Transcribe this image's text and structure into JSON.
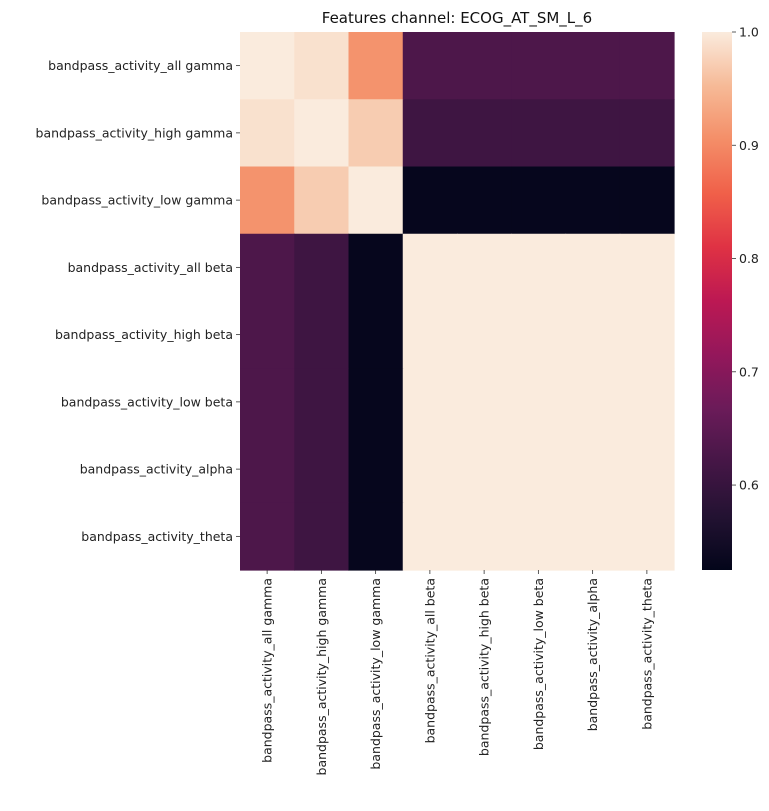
{
  "chart_data": {
    "type": "heatmap",
    "title": "Features channel: ECOG_AT_SM_L_6",
    "rows": [
      "bandpass_activity_all gamma",
      "bandpass_activity_high gamma",
      "bandpass_activity_low gamma",
      "bandpass_activity_all beta",
      "bandpass_activity_high beta",
      "bandpass_activity_low beta",
      "bandpass_activity_alpha",
      "bandpass_activity_theta"
    ],
    "columns": [
      "bandpass_activity_all gamma",
      "bandpass_activity_high gamma",
      "bandpass_activity_low gamma",
      "bandpass_activity_all beta",
      "bandpass_activity_high beta",
      "bandpass_activity_low beta",
      "bandpass_activity_alpha",
      "bandpass_activity_theta"
    ],
    "values": [
      [
        1.0,
        0.99,
        0.91,
        0.63,
        0.63,
        0.63,
        0.63,
        0.63
      ],
      [
        0.99,
        1.0,
        0.97,
        0.61,
        0.61,
        0.61,
        0.61,
        0.61
      ],
      [
        0.91,
        0.97,
        1.0,
        0.53,
        0.53,
        0.53,
        0.53,
        0.53
      ],
      [
        0.63,
        0.61,
        0.53,
        1.0,
        1.0,
        1.0,
        1.0,
        1.0
      ],
      [
        0.63,
        0.61,
        0.53,
        1.0,
        1.0,
        1.0,
        1.0,
        1.0
      ],
      [
        0.63,
        0.61,
        0.53,
        1.0,
        1.0,
        1.0,
        1.0,
        1.0
      ],
      [
        0.63,
        0.61,
        0.53,
        1.0,
        1.0,
        1.0,
        1.0,
        1.0
      ],
      [
        0.63,
        0.61,
        0.53,
        1.0,
        1.0,
        1.0,
        1.0,
        1.0
      ]
    ],
    "colorbar": {
      "colormap": "rocket",
      "vmin": 0.525,
      "vmax": 1.0,
      "ticks": [
        0.6,
        0.7,
        0.8,
        0.9,
        1.0
      ],
      "tick_labels": [
        "0.6",
        "0.7",
        "0.8",
        "0.9",
        "1.0"
      ]
    },
    "grid": false,
    "legend": "colorbar-right"
  }
}
